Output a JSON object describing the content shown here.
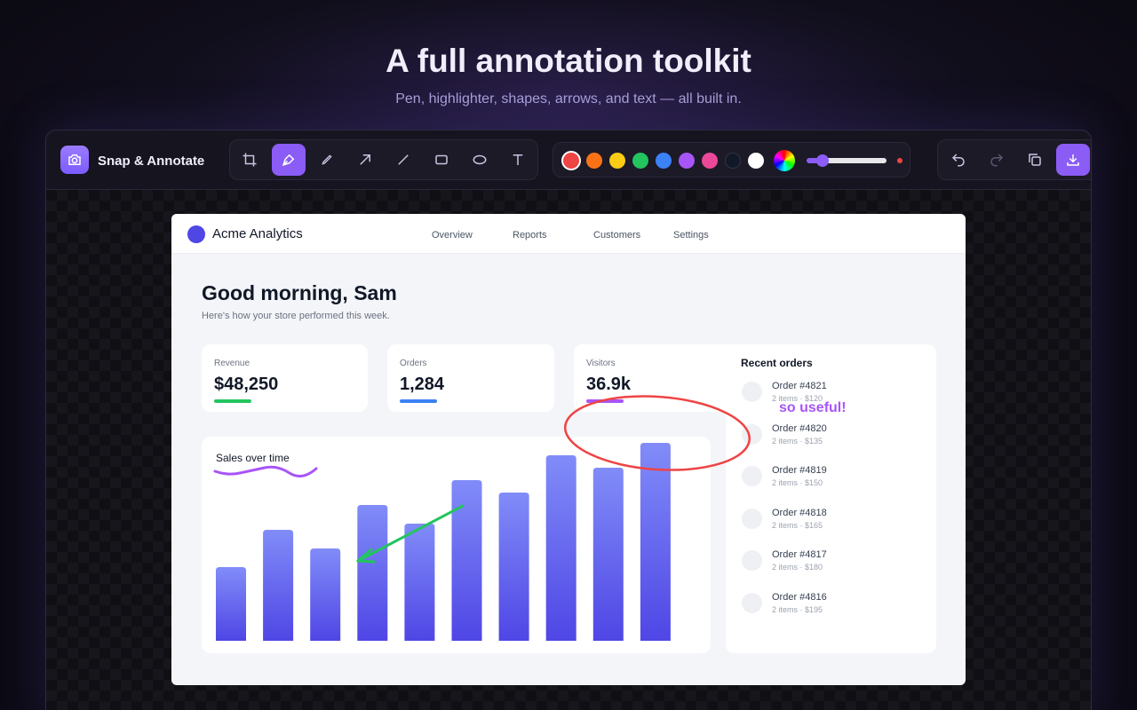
{
  "header": {
    "title": "A full annotation toolkit",
    "subtitle": "Pen, highlighter, shapes, arrows, and text — all built in."
  },
  "app": {
    "name": "Snap & Annotate"
  },
  "screenshot": {
    "brand": "Acme Analytics",
    "nav": [
      "Overview",
      "Reports",
      "Customers",
      "Settings"
    ],
    "greeting": "Good morning, Sam",
    "subtitle": "Here's how your store performed this week.",
    "stats": [
      {
        "label": "Revenue",
        "value": "$48,250"
      },
      {
        "label": "Orders",
        "value": "1,284"
      },
      {
        "label": "Visitors",
        "value": "36.9k"
      }
    ],
    "chart": {
      "type": "bar",
      "title": "Sales over time",
      "values": [
        83,
        125,
        104,
        153,
        132,
        181,
        167,
        209,
        195,
        223
      ],
      "ylim": [
        0,
        240
      ]
    },
    "orders": {
      "title": "Recent orders",
      "items": [
        {
          "name": "Order #4821",
          "detail": "2 items · $120"
        },
        {
          "name": "Order #4820",
          "detail": "2 items · $135"
        },
        {
          "name": "Order #4819",
          "detail": "2 items · $150"
        },
        {
          "name": "Order #4818",
          "detail": "2 items · $165"
        },
        {
          "name": "Order #4817",
          "detail": "2 items · $180"
        },
        {
          "name": "Order #4816",
          "detail": "2 items · $195"
        }
      ]
    }
  },
  "annotations": {
    "note": "so useful!"
  }
}
